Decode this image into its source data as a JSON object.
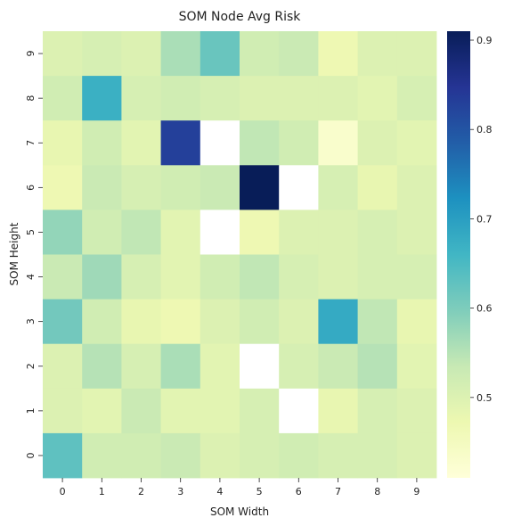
{
  "chart_data": {
    "type": "heatmap",
    "title": "SOM Node Avg Risk",
    "xlabel": "SOM Width",
    "ylabel": "SOM Height",
    "x_categories": [
      "0",
      "1",
      "2",
      "3",
      "4",
      "5",
      "6",
      "7",
      "8",
      "9"
    ],
    "y_categories_top_to_bottom": [
      "9",
      "8",
      "7",
      "6",
      "5",
      "4",
      "3",
      "2",
      "1",
      "0"
    ],
    "values_top_to_bottom": [
      [
        0.5,
        0.51,
        0.5,
        0.56,
        0.62,
        0.52,
        0.53,
        0.47,
        0.5,
        0.5
      ],
      [
        0.52,
        0.67,
        0.51,
        0.52,
        0.51,
        0.5,
        0.5,
        0.5,
        0.49,
        0.51
      ],
      [
        0.48,
        0.52,
        0.49,
        0.83,
        null,
        0.54,
        0.52,
        0.43,
        0.5,
        0.49
      ],
      [
        0.47,
        0.53,
        0.51,
        0.52,
        0.53,
        0.91,
        null,
        0.51,
        0.48,
        0.5
      ],
      [
        0.58,
        0.52,
        0.54,
        0.49,
        null,
        0.47,
        0.5,
        0.5,
        0.51,
        0.5
      ],
      [
        0.53,
        0.57,
        0.51,
        0.49,
        0.52,
        0.54,
        0.51,
        0.5,
        0.51,
        0.51
      ],
      [
        0.61,
        0.52,
        0.48,
        0.47,
        0.5,
        0.52,
        0.5,
        0.68,
        0.54,
        0.48
      ],
      [
        0.5,
        0.55,
        0.51,
        0.56,
        0.49,
        null,
        0.51,
        0.53,
        0.55,
        0.49
      ],
      [
        0.5,
        0.49,
        0.53,
        0.49,
        0.49,
        0.51,
        null,
        0.48,
        0.51,
        0.5
      ],
      [
        0.63,
        0.52,
        0.52,
        0.53,
        0.5,
        0.51,
        0.52,
        0.51,
        0.51,
        0.5
      ]
    ],
    "missing_cells": "white",
    "colormap": "YlGnBu",
    "colorbar": {
      "vmin": 0.41,
      "vmax": 0.91,
      "ticks": [
        0.5,
        0.6,
        0.7,
        0.8,
        0.9
      ],
      "tick_labels": [
        "0.5",
        "0.6",
        "0.7",
        "0.8",
        "0.9"
      ]
    },
    "grid": false
  }
}
